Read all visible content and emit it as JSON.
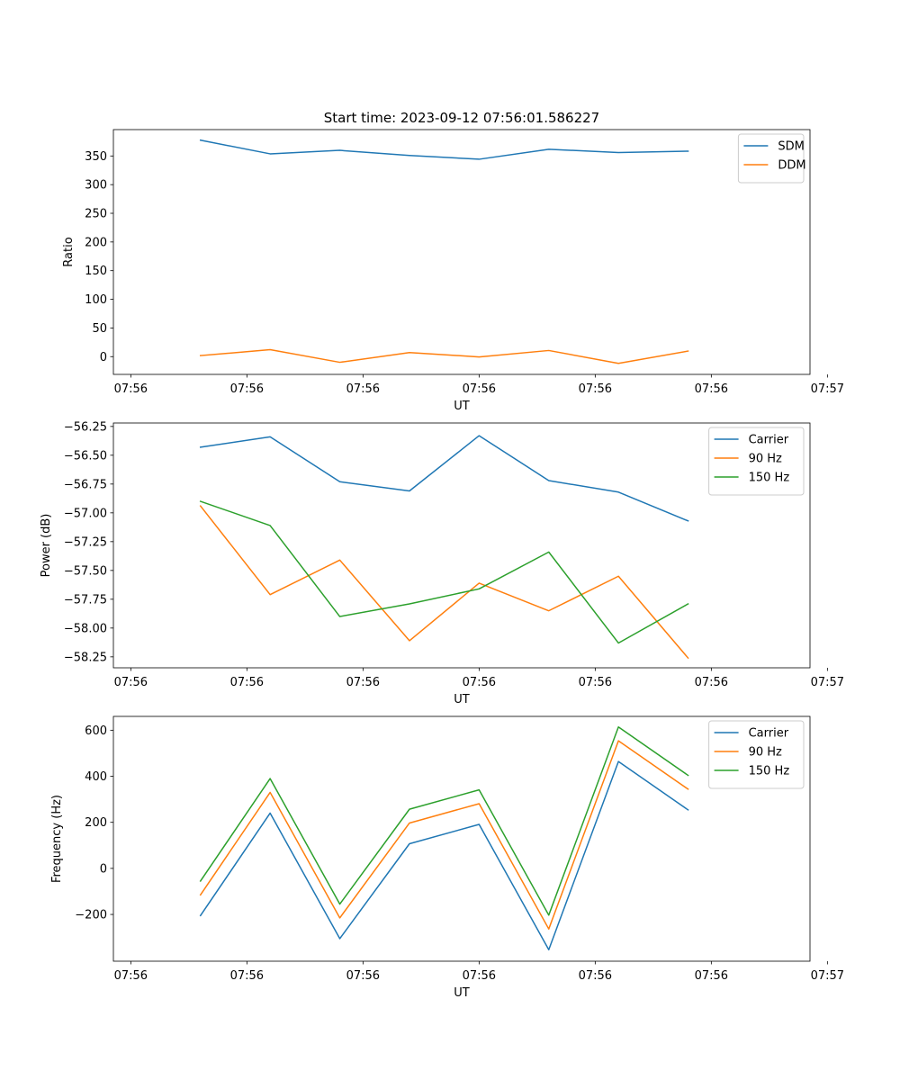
{
  "figure_title": "Start time: 2023-09-12 07:56:01.586227",
  "chart_data": [
    {
      "type": "line",
      "title": "Start time: 2023-09-12 07:56:01.586227",
      "xlabel": "UT",
      "ylabel": "Ratio",
      "x": [
        0.6,
        1.2,
        1.8,
        2.4,
        3.0,
        3.6,
        4.2,
        4.8
      ],
      "xlim": [
        -0.15,
        5.85
      ],
      "x_ticks": [
        0,
        1,
        2,
        3,
        4,
        5,
        6
      ],
      "x_tick_labels": [
        "07:56",
        "07:56",
        "07:56",
        "07:56",
        "07:56",
        "07:56",
        "07:57"
      ],
      "ylim": [
        -31,
        396
      ],
      "y_ticks": [
        0,
        50,
        100,
        150,
        200,
        250,
        300,
        350
      ],
      "y_tick_labels": [
        "0",
        "50",
        "100",
        "150",
        "200",
        "250",
        "300",
        "350"
      ],
      "legend_position": "top-right",
      "series": [
        {
          "name": "SDM",
          "color": "#1f77b4",
          "values": [
            377.5,
            353.7,
            359.8,
            350.8,
            344.3,
            361.7,
            356.0,
            358.3
          ]
        },
        {
          "name": "DDM",
          "color": "#ff7f0e",
          "values": [
            1.8,
            12.1,
            -9.9,
            7.1,
            -0.5,
            10.7,
            -11.7,
            9.7
          ]
        }
      ]
    },
    {
      "type": "line",
      "xlabel": "UT",
      "ylabel": "Power (dB)",
      "x": [
        0.6,
        1.2,
        1.8,
        2.4,
        3.0,
        3.6,
        4.2,
        4.8
      ],
      "xlim": [
        -0.15,
        5.85
      ],
      "x_ticks": [
        0,
        1,
        2,
        3,
        4,
        5,
        6
      ],
      "x_tick_labels": [
        "07:56",
        "07:56",
        "07:56",
        "07:56",
        "07:56",
        "07:56",
        "07:57"
      ],
      "ylim": [
        -58.345,
        -56.22
      ],
      "y_ticks": [
        -56.25,
        -56.5,
        -56.75,
        -57.0,
        -57.25,
        -57.5,
        -57.75,
        -58.0,
        -58.25
      ],
      "y_tick_labels": [
        "−56.25",
        "−56.50",
        "−56.75",
        "−57.00",
        "−57.25",
        "−57.50",
        "−57.75",
        "−58.00",
        "−58.25"
      ],
      "legend_position": "top-right",
      "series": [
        {
          "name": "Carrier",
          "color": "#1f77b4",
          "values": [
            -56.43,
            -56.34,
            -56.73,
            -56.81,
            -56.33,
            -56.72,
            -56.82,
            -57.07
          ]
        },
        {
          "name": "90 Hz",
          "color": "#ff7f0e",
          "values": [
            -56.94,
            -57.71,
            -57.41,
            -58.11,
            -57.61,
            -57.85,
            -57.55,
            -58.26
          ]
        },
        {
          "name": "150 Hz",
          "color": "#2ca02c",
          "values": [
            -56.9,
            -57.11,
            -57.9,
            -57.79,
            -57.66,
            -57.34,
            -58.13,
            -57.79
          ]
        }
      ]
    },
    {
      "type": "line",
      "xlabel": "UT",
      "ylabel": "Frequency (Hz)",
      "x": [
        0.6,
        1.2,
        1.8,
        2.4,
        3.0,
        3.6,
        4.2,
        4.8
      ],
      "xlim": [
        -0.15,
        5.85
      ],
      "x_ticks": [
        0,
        1,
        2,
        3,
        4,
        5,
        6
      ],
      "x_tick_labels": [
        "07:56",
        "07:56",
        "07:56",
        "07:56",
        "07:56",
        "07:56",
        "07:57"
      ],
      "ylim": [
        -403,
        660
      ],
      "y_ticks": [
        -200,
        0,
        200,
        400,
        600
      ],
      "y_tick_labels": [
        "−200",
        "0",
        "200",
        "400",
        "600"
      ],
      "legend_position": "top-right",
      "series": [
        {
          "name": "Carrier",
          "color": "#1f77b4",
          "values": [
            -205,
            240,
            -305,
            107,
            191,
            -353,
            464,
            254
          ]
        },
        {
          "name": "90 Hz",
          "color": "#ff7f0e",
          "values": [
            -115,
            330,
            -215,
            197,
            281,
            -263,
            554,
            344
          ]
        },
        {
          "name": "150 Hz",
          "color": "#2ca02c",
          "values": [
            -55,
            390,
            -155,
            257,
            341,
            -203,
            614,
            404
          ]
        }
      ]
    }
  ]
}
